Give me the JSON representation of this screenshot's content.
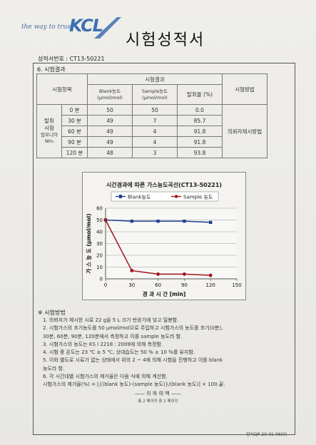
{
  "header": {
    "tagline": "the way to trust",
    "logo_text": "KCL",
    "title": "시험성적서",
    "report_no": "성적서번호 : CT13-50221"
  },
  "section": {
    "heading": "6. 시험결과"
  },
  "table": {
    "col_item": "시험항목",
    "col_result": "시험결과",
    "col_blank": "Blank농도\n(μmol/mol)",
    "col_sample": "Sample농도\n(μmol/mol)",
    "col_removal": "탈취율 (%)",
    "col_method": "시험방법",
    "item_label_1": "탈취",
    "item_label_2": "시험",
    "item_label_3": "암모니아",
    "item_label_4": "NH₃",
    "method_value": "의뢰자제시방법",
    "rows": [
      {
        "time": "0 분",
        "blank": "50",
        "sample": "50",
        "rate": "0.0"
      },
      {
        "time": "30 분",
        "blank": "49",
        "sample": "7",
        "rate": "85.7"
      },
      {
        "time": "60 분",
        "blank": "49",
        "sample": "4",
        "rate": "91.8"
      },
      {
        "time": "90 분",
        "blank": "49",
        "sample": "4",
        "rate": "91.8"
      },
      {
        "time": "120 분",
        "blank": "48",
        "sample": "3",
        "rate": "93.8"
      }
    ]
  },
  "chart_data": {
    "type": "line",
    "title": "시간경과에 따른 가스농도곡선(CT13-50221)",
    "xlabel": "경 과 시 간 [min]",
    "ylabel": "가 스 농 도 (μmol/mol)",
    "xlim": [
      0,
      150
    ],
    "ylim": [
      0,
      60
    ],
    "xticks": [
      0,
      30,
      60,
      90,
      120,
      150
    ],
    "yticks": [
      0,
      10,
      20,
      30,
      40,
      50,
      60
    ],
    "grid": true,
    "legend_position": "top",
    "x": [
      0,
      30,
      60,
      90,
      120
    ],
    "series": [
      {
        "name": "Blank농도",
        "values": [
          50,
          49,
          49,
          49,
          48
        ],
        "color": "#1f3f8f"
      },
      {
        "name": "Sample 농도",
        "values": [
          50,
          7,
          4,
          4,
          3
        ],
        "color": "#a0161c"
      }
    ]
  },
  "methods": {
    "heading": "※ 시험방법",
    "lines": [
      "1. 의뢰자가 제시한 시료 22 g을 5 L 크기 반응기에 넣고 밀봉함.",
      "2. 시험가스의 초기농도를 50 μmol/mol으로 주입하고 시험가스의 농도를 초기(0분),",
      "30분, 60분, 90분, 120분에서 측정하고 이를 sample 농도라 함.",
      "3. 시험가스의 농도는 KS I 2218 : 2009에 의해 측정함.",
      "4. 시험 중 온도는 23 ℃ ± 5 ℃, 상대습도는 50 % ± 10 %를 유지함.",
      "5. 이와 별도로 시료가 없는 상태에서 위의 2 ~ 4에 의해 시험을 진행하고 이를 blank",
      "농도라 함.",
      "6. 각 시간대별 시험가스의 제거율은 다음 식에 의해 계산함.",
      "시험가스의 제거율(%) = [{(blank 농도)-(sample 농도)}/(blank 농도)] × 100.끝."
    ]
  },
  "footer": {
    "end_mark": "—— 이 하 여 백 ——",
    "page_note": "총 2 페이지 중 2 페이지",
    "form_no": "양식QP-20-01-06(0)"
  }
}
